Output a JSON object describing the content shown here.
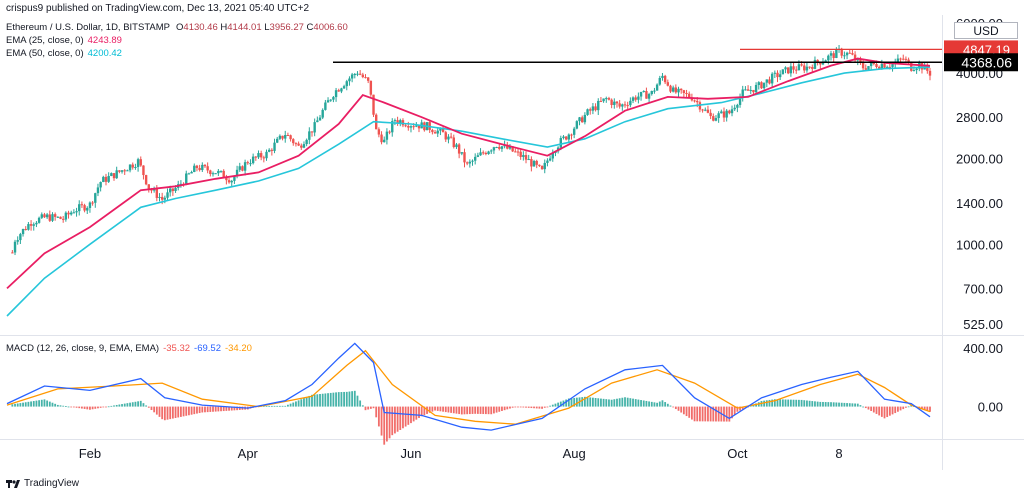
{
  "header": {
    "published": "crispus9 published on TradingView.com, Dec 13, 2021 05:40 UTC+2",
    "symbol": "Ethereum / U.S. Dollar, 1D, BITSTAMP",
    "ohlc": [
      {
        "k": "O",
        "v": "4130.46"
      },
      {
        "k": "H",
        "v": "4144.01"
      },
      {
        "k": "L",
        "v": "3956.27"
      },
      {
        "k": "C",
        "v": "4006.60"
      }
    ],
    "ema1_label": "EMA (25, close, 0)",
    "ema1_value": "4243.89",
    "ema2_label": "EMA (50, close, 0)",
    "ema2_value": "4200.42"
  },
  "currency": "USD",
  "macd_legend": {
    "label": "MACD (12, 26, close, 9, EMA, EMA)",
    "v1": "-35.32",
    "v2": "-69.52",
    "v3": "-34.20"
  },
  "footer": {
    "brand": "TradingView"
  },
  "colors": {
    "ema25": "#e91e63",
    "ema50": "#26c6da",
    "up": "#26a69a",
    "down": "#ef5350",
    "macd": "#2962ff",
    "signal": "#ff9800",
    "resistance": "#e53935",
    "support": "#000000"
  },
  "chart_data": [
    {
      "type": "candlestick",
      "series": "ETH/USD daily",
      "x_ticks": [
        "Feb",
        "Apr",
        "Jun",
        "Aug",
        "Oct",
        "8"
      ],
      "y_ticks": [
        "6000.00",
        "4000.00",
        "2800.00",
        "2000.00",
        "1400.00",
        "1000.00",
        "700.00",
        "525.00"
      ],
      "y_scale": "log",
      "annotations": {
        "resistance_label": "4847.19",
        "resistance_value": 4847.19,
        "support_label": "4368.06",
        "support_value": 4368.06
      },
      "close_path": [
        [
          "2021-01-01",
          730
        ],
        [
          "2021-01-04",
          1040
        ],
        [
          "2021-01-10",
          1200
        ],
        [
          "2021-01-16",
          1250
        ],
        [
          "2021-01-22",
          1230
        ],
        [
          "2021-01-26",
          1320
        ],
        [
          "2021-02-01",
          1380
        ],
        [
          "2021-02-05",
          1660
        ],
        [
          "2021-02-12",
          1800
        ],
        [
          "2021-02-19",
          1960
        ],
        [
          "2021-02-23",
          1580
        ],
        [
          "2021-02-28",
          1440
        ],
        [
          "2021-03-06",
          1600
        ],
        [
          "2021-03-13",
          1870
        ],
        [
          "2021-03-20",
          1800
        ],
        [
          "2021-03-26",
          1690
        ],
        [
          "2021-04-01",
          1960
        ],
        [
          "2021-04-08",
          2080
        ],
        [
          "2021-04-15",
          2450
        ],
        [
          "2021-04-20",
          2200
        ],
        [
          "2021-04-26",
          2600
        ],
        [
          "2021-05-03",
          3400
        ],
        [
          "2021-05-07",
          3700
        ],
        [
          "2021-05-12",
          4050
        ],
        [
          "2021-05-16",
          3700
        ],
        [
          "2021-05-19",
          2500
        ],
        [
          "2021-05-22",
          2300
        ],
        [
          "2021-05-26",
          2750
        ],
        [
          "2021-06-01",
          2650
        ],
        [
          "2021-06-07",
          2600
        ],
        [
          "2021-06-13",
          2450
        ],
        [
          "2021-06-18",
          2200
        ],
        [
          "2021-06-22",
          1890
        ],
        [
          "2021-06-28",
          2100
        ],
        [
          "2021-07-03",
          2250
        ],
        [
          "2021-07-08",
          2150
        ],
        [
          "2021-07-14",
          2000
        ],
        [
          "2021-07-20",
          1800
        ],
        [
          "2021-07-24",
          2150
        ],
        [
          "2021-07-30",
          2450
        ],
        [
          "2021-08-06",
          2900
        ],
        [
          "2021-08-13",
          3250
        ],
        [
          "2021-08-18",
          3050
        ],
        [
          "2021-08-24",
          3300
        ],
        [
          "2021-08-30",
          3400
        ],
        [
          "2021-09-03",
          3900
        ],
        [
          "2021-09-07",
          3450
        ],
        [
          "2021-09-14",
          3300
        ],
        [
          "2021-09-21",
          2800
        ],
        [
          "2021-09-28",
          2900
        ],
        [
          "2021-10-03",
          3400
        ],
        [
          "2021-10-09",
          3600
        ],
        [
          "2021-10-15",
          3900
        ],
        [
          "2021-10-21",
          4150
        ],
        [
          "2021-10-27",
          4200
        ],
        [
          "2021-11-03",
          4500
        ],
        [
          "2021-11-08",
          4750
        ],
        [
          "2021-11-12",
          4650
        ],
        [
          "2021-11-17",
          4200
        ],
        [
          "2021-11-22",
          4300
        ],
        [
          "2021-11-28",
          4300
        ],
        [
          "2021-12-02",
          4500
        ],
        [
          "2021-12-05",
          4200
        ],
        [
          "2021-12-08",
          4300
        ],
        [
          "2021-12-12",
          4006.6
        ]
      ],
      "ema25_path": [
        [
          "2021-01-01",
          700
        ],
        [
          "2021-01-15",
          930
        ],
        [
          "2021-02-01",
          1150
        ],
        [
          "2021-02-20",
          1550
        ],
        [
          "2021-03-05",
          1600
        ],
        [
          "2021-03-20",
          1700
        ],
        [
          "2021-04-05",
          1790
        ],
        [
          "2021-04-20",
          2050
        ],
        [
          "2021-05-05",
          2650
        ],
        [
          "2021-05-14",
          3350
        ],
        [
          "2021-05-22",
          3150
        ],
        [
          "2021-06-05",
          2800
        ],
        [
          "2021-06-20",
          2450
        ],
        [
          "2021-07-05",
          2250
        ],
        [
          "2021-07-22",
          2050
        ],
        [
          "2021-08-05",
          2400
        ],
        [
          "2021-08-20",
          2950
        ],
        [
          "2021-09-05",
          3300
        ],
        [
          "2021-09-20",
          3250
        ],
        [
          "2021-10-05",
          3300
        ],
        [
          "2021-10-20",
          3750
        ],
        [
          "2021-11-05",
          4250
        ],
        [
          "2021-11-15",
          4500
        ],
        [
          "2021-11-25",
          4350
        ],
        [
          "2021-12-12",
          4243.89
        ]
      ],
      "ema50_path": [
        [
          "2021-01-01",
          560
        ],
        [
          "2021-01-15",
          760
        ],
        [
          "2021-02-01",
          1000
        ],
        [
          "2021-02-20",
          1350
        ],
        [
          "2021-03-05",
          1450
        ],
        [
          "2021-03-20",
          1550
        ],
        [
          "2021-04-05",
          1670
        ],
        [
          "2021-04-20",
          1850
        ],
        [
          "2021-05-05",
          2250
        ],
        [
          "2021-05-18",
          2700
        ],
        [
          "2021-06-01",
          2650
        ],
        [
          "2021-06-20",
          2500
        ],
        [
          "2021-07-05",
          2350
        ],
        [
          "2021-07-22",
          2200
        ],
        [
          "2021-08-05",
          2350
        ],
        [
          "2021-08-20",
          2700
        ],
        [
          "2021-09-05",
          3000
        ],
        [
          "2021-09-25",
          3150
        ],
        [
          "2021-10-10",
          3400
        ],
        [
          "2021-10-25",
          3700
        ],
        [
          "2021-11-10",
          4000
        ],
        [
          "2021-11-25",
          4150
        ],
        [
          "2021-12-12",
          4200.42
        ]
      ]
    },
    {
      "type": "line",
      "title": "MACD (12, 26, close, 9, EMA, EMA)",
      "y_ticks": [
        "400.00",
        "0.00"
      ],
      "macd_path": [
        [
          "2021-01-01",
          20
        ],
        [
          "2021-01-15",
          140
        ],
        [
          "2021-02-01",
          110
        ],
        [
          "2021-02-20",
          190
        ],
        [
          "2021-03-01",
          60
        ],
        [
          "2021-03-15",
          10
        ],
        [
          "2021-04-01",
          -10
        ],
        [
          "2021-04-15",
          40
        ],
        [
          "2021-04-25",
          150
        ],
        [
          "2021-05-05",
          330
        ],
        [
          "2021-05-11",
          430
        ],
        [
          "2021-05-18",
          300
        ],
        [
          "2021-05-22",
          -40
        ],
        [
          "2021-06-05",
          -60
        ],
        [
          "2021-06-20",
          -140
        ],
        [
          "2021-07-01",
          -160
        ],
        [
          "2021-07-20",
          -80
        ],
        [
          "2021-08-05",
          120
        ],
        [
          "2021-08-20",
          250
        ],
        [
          "2021-09-03",
          280
        ],
        [
          "2021-09-15",
          60
        ],
        [
          "2021-09-28",
          -80
        ],
        [
          "2021-10-10",
          60
        ],
        [
          "2021-10-25",
          150
        ],
        [
          "2021-11-05",
          200
        ],
        [
          "2021-11-15",
          240
        ],
        [
          "2021-11-25",
          50
        ],
        [
          "2021-12-05",
          20
        ],
        [
          "2021-12-12",
          -69.52
        ]
      ],
      "signal_path": [
        [
          "2021-01-01",
          10
        ],
        [
          "2021-01-20",
          120
        ],
        [
          "2021-02-10",
          140
        ],
        [
          "2021-02-28",
          160
        ],
        [
          "2021-03-15",
          50
        ],
        [
          "2021-04-05",
          0
        ],
        [
          "2021-04-25",
          70
        ],
        [
          "2021-05-08",
          280
        ],
        [
          "2021-05-15",
          380
        ],
        [
          "2021-05-25",
          150
        ],
        [
          "2021-06-10",
          -60
        ],
        [
          "2021-06-25",
          -100
        ],
        [
          "2021-07-10",
          -120
        ],
        [
          "2021-07-30",
          -10
        ],
        [
          "2021-08-15",
          160
        ],
        [
          "2021-09-01",
          250
        ],
        [
          "2021-09-15",
          160
        ],
        [
          "2021-10-01",
          -10
        ],
        [
          "2021-10-15",
          40
        ],
        [
          "2021-11-01",
          150
        ],
        [
          "2021-11-15",
          220
        ],
        [
          "2021-11-25",
          130
        ],
        [
          "2021-12-05",
          10
        ],
        [
          "2021-12-12",
          -34.2
        ]
      ]
    }
  ]
}
